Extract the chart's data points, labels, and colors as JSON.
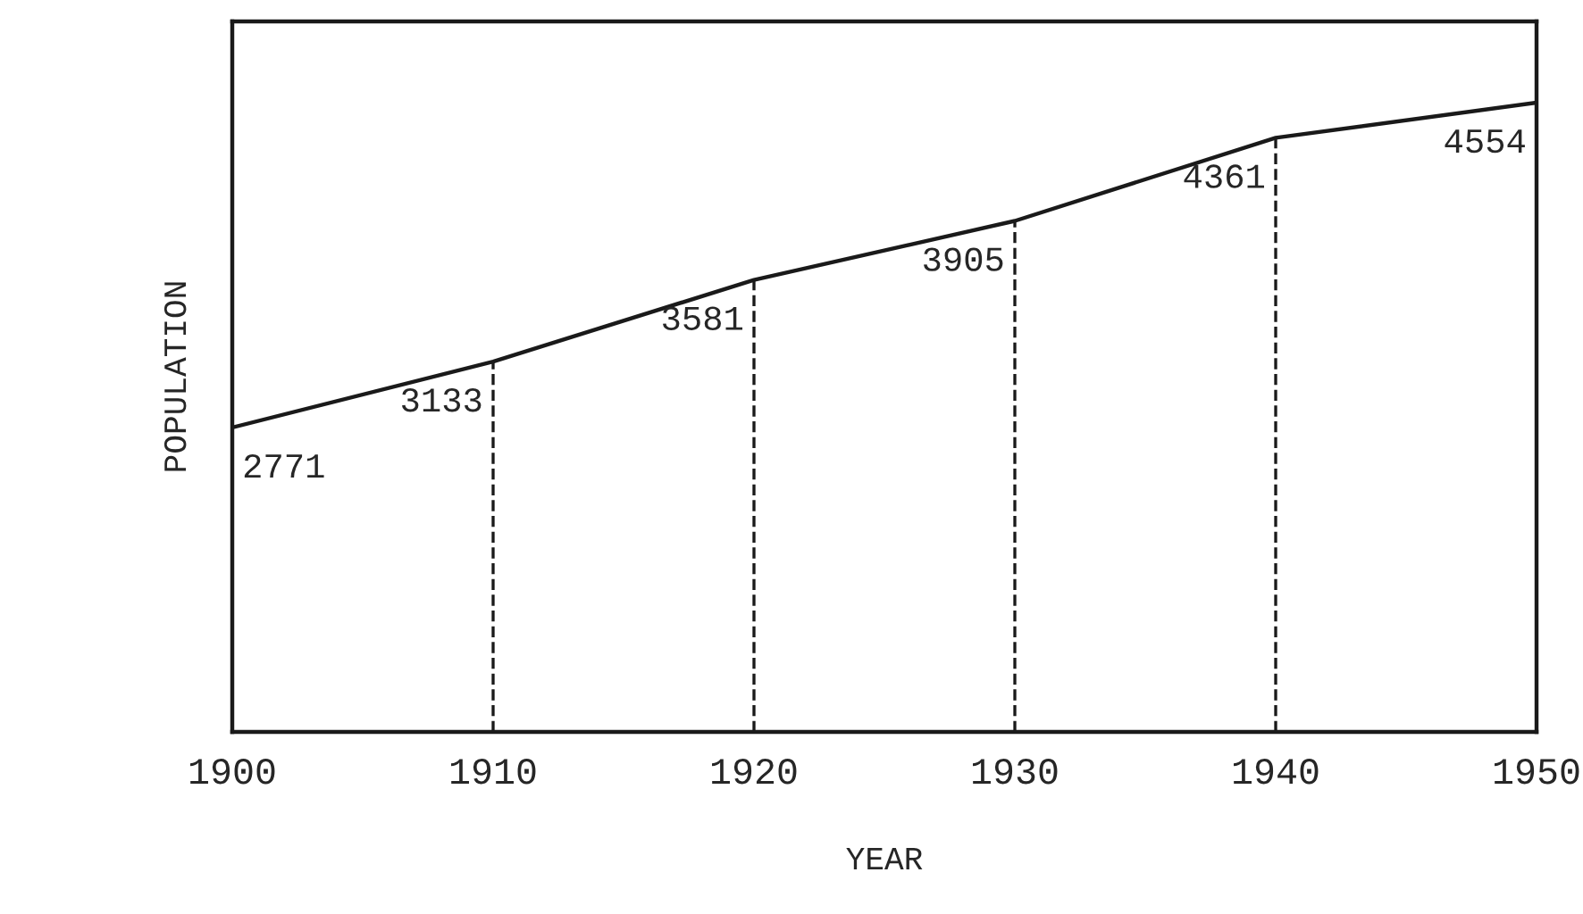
{
  "chart_data": {
    "type": "line",
    "xlabel": "YEAR",
    "ylabel": "POPULATION",
    "x": [
      1900,
      1910,
      1920,
      1930,
      1940,
      1950
    ],
    "series": [
      {
        "color": "#1a1a1a",
        "values": [
          2771,
          3133,
          3581,
          3905,
          4361,
          4554
        ]
      }
    ],
    "xlim": [
      1900,
      1950
    ],
    "xticks": [
      1900,
      1910,
      1920,
      1930,
      1940,
      1950
    ],
    "ylim": [
      1100,
      5000
    ],
    "tick_labels": "x",
    "data_labels": true,
    "grid": false,
    "legend": false,
    "marker": "none",
    "line_style": "solid",
    "ref_lines": [
      {
        "axis": "x",
        "value": 1910,
        "line_style": "dashed",
        "color": "#1a1a1a"
      },
      {
        "axis": "x",
        "value": 1920,
        "line_style": "dashed",
        "color": "#1a1a1a"
      },
      {
        "axis": "x",
        "value": 1930,
        "line_style": "dashed",
        "color": "#1a1a1a"
      },
      {
        "axis": "x",
        "value": 1940,
        "line_style": "dashed",
        "color": "#1a1a1a"
      }
    ]
  }
}
